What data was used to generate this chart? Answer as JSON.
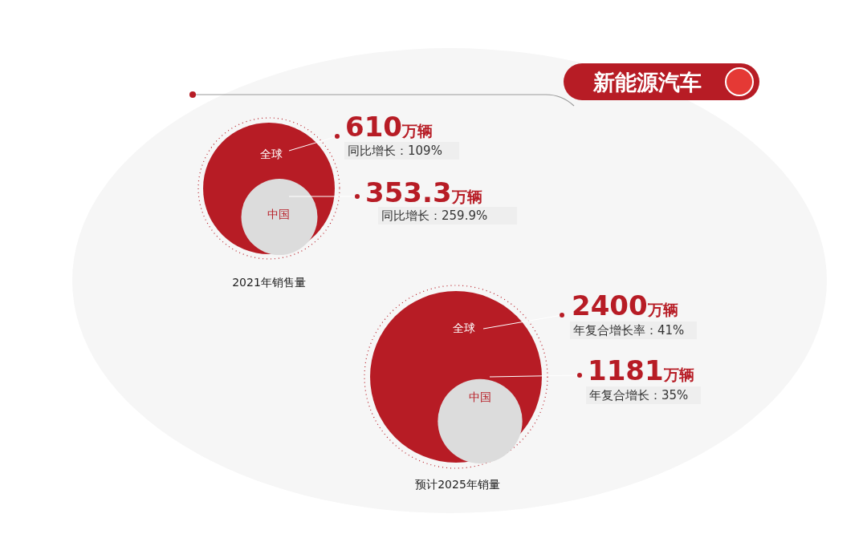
{
  "chart_data": [
    {
      "type": "other",
      "title": "新能源汽车",
      "xlabel": "2021年销售量",
      "categories": [
        "全球",
        "中国"
      ],
      "values": [
        610,
        353.3
      ],
      "value_labels": [
        "610万辆",
        "353.3万辆"
      ],
      "colors": [
        "#b71c25",
        "#dcdcdc"
      ],
      "annotations": [
        "同比增长：109%",
        "同比增长：259.9%"
      ]
    },
    {
      "type": "other",
      "xlabel": "预计2025年销量",
      "categories": [
        "全球",
        "中国"
      ],
      "values": [
        2400,
        1181
      ],
      "value_labels": [
        "2400万辆",
        "1181万辆"
      ],
      "colors": [
        "#b71c25",
        "#dcdcdc"
      ],
      "annotations": [
        "年复合增长率：41%",
        "年复合增长：35%"
      ]
    }
  ]
}
